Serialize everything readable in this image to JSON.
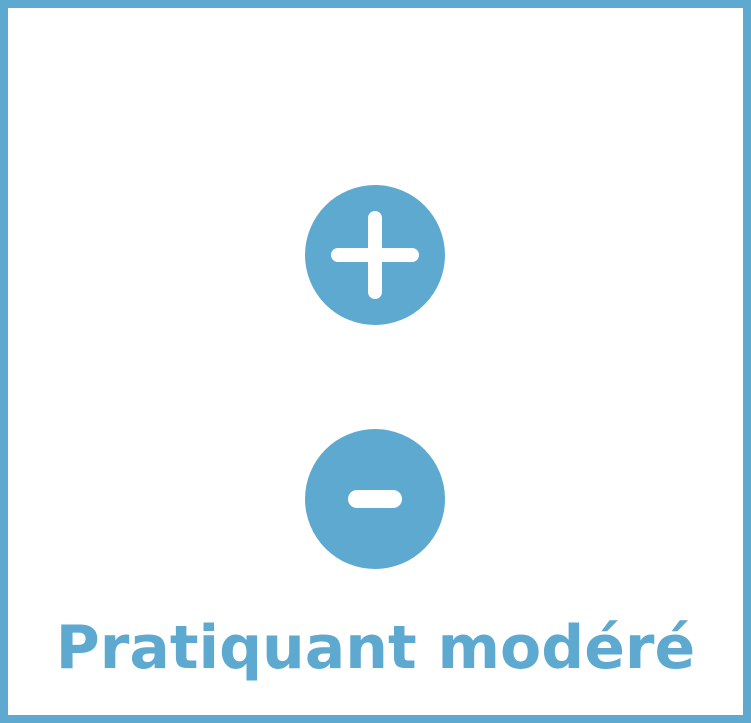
{
  "label": "Pratiquant modéré",
  "icons": {
    "increase": "plus-icon",
    "decrease": "minus-icon"
  },
  "colors": {
    "accent": "#5ea9d0",
    "background": "#ffffff",
    "icon_glyph": "#ffffff"
  }
}
